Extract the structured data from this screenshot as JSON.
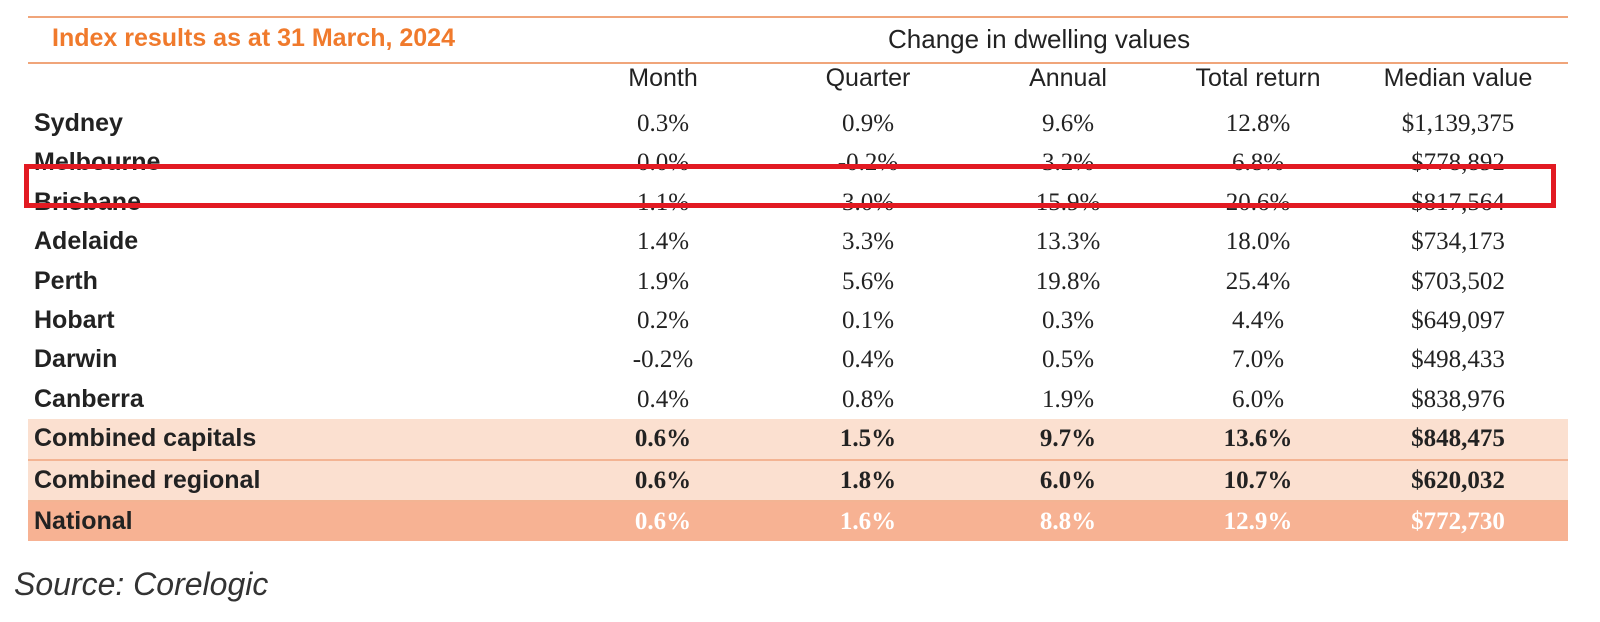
{
  "title": "Index results as at 31 March, 2024",
  "group_label": "Change in dwelling values",
  "columns": [
    "Month",
    "Quarter",
    "Annual",
    "Total return",
    "Median value"
  ],
  "rows": [
    {
      "city": "Sydney",
      "month": "0.3%",
      "quarter": "0.9%",
      "annual": "9.6%",
      "total_return": "12.8%",
      "median": "$1,139,375"
    },
    {
      "city": "Melbourne",
      "month": "0.0%",
      "quarter": "-0.2%",
      "annual": "3.2%",
      "total_return": "6.8%",
      "median": "$778,892"
    },
    {
      "city": "Brisbane",
      "month": "1.1%",
      "quarter": "3.0%",
      "annual": "15.9%",
      "total_return": "20.6%",
      "median": "$817,564"
    },
    {
      "city": "Adelaide",
      "month": "1.4%",
      "quarter": "3.3%",
      "annual": "13.3%",
      "total_return": "18.0%",
      "median": "$734,173"
    },
    {
      "city": "Perth",
      "month": "1.9%",
      "quarter": "5.6%",
      "annual": "19.8%",
      "total_return": "25.4%",
      "median": "$703,502"
    },
    {
      "city": "Hobart",
      "month": "0.2%",
      "quarter": "0.1%",
      "annual": "0.3%",
      "total_return": "4.4%",
      "median": "$649,097"
    },
    {
      "city": "Darwin",
      "month": "-0.2%",
      "quarter": "0.4%",
      "annual": "0.5%",
      "total_return": "7.0%",
      "median": "$498,433"
    },
    {
      "city": "Canberra",
      "month": "0.4%",
      "quarter": "0.8%",
      "annual": "1.9%",
      "total_return": "6.0%",
      "median": "$838,976"
    },
    {
      "city": "Combined capitals",
      "month": "0.6%",
      "quarter": "1.5%",
      "annual": "9.7%",
      "total_return": "13.6%",
      "median": "$848,475"
    },
    {
      "city": "Combined regional",
      "month": "0.6%",
      "quarter": "1.8%",
      "annual": "6.0%",
      "total_return": "10.7%",
      "median": "$620,032"
    },
    {
      "city": "National",
      "month": "0.6%",
      "quarter": "1.6%",
      "annual": "8.8%",
      "total_return": "12.9%",
      "median": "$772,730"
    }
  ],
  "highlighted_row": "Brisbane",
  "source": "Source: Corelogic",
  "colors": {
    "title": "#f07a2c",
    "highlight": "#e21a22",
    "combined_bg": "#fbe0d0",
    "national_bg": "#f7b293"
  }
}
